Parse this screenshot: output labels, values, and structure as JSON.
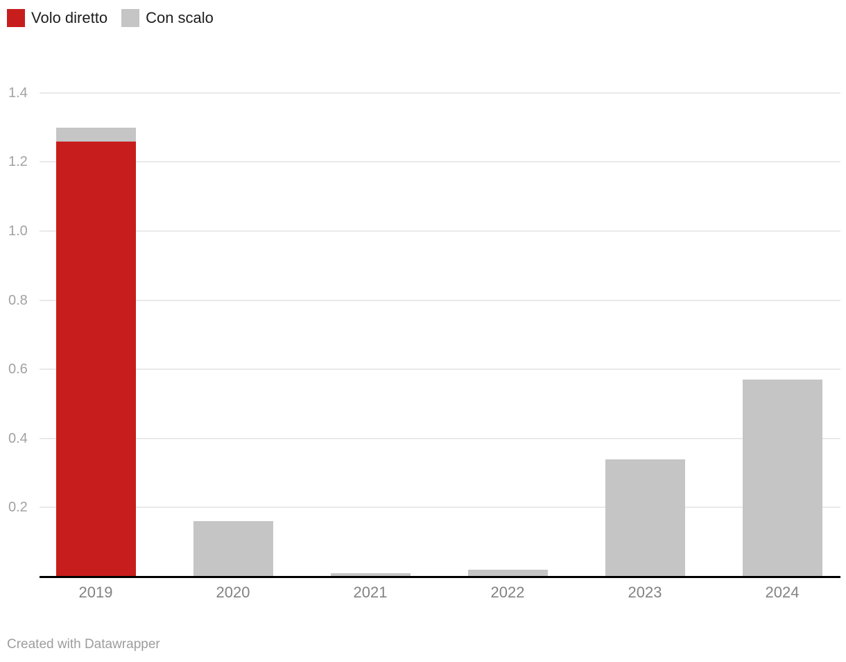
{
  "footer": {
    "credit": "Created with Datawrapper"
  },
  "chart_data": {
    "type": "bar",
    "stacked": true,
    "title": "",
    "xlabel": "",
    "ylabel": "",
    "categories": [
      "2019",
      "2020",
      "2021",
      "2022",
      "2023",
      "2024"
    ],
    "series": [
      {
        "name": "Volo diretto",
        "color": "#c71e1d",
        "values": [
          1.26,
          0,
          0,
          0,
          0,
          0
        ]
      },
      {
        "name": "Con scalo",
        "color": "#c5c5c5",
        "values": [
          0.04,
          0.16,
          0.01,
          0.02,
          0.34,
          0.57
        ]
      }
    ],
    "totals": [
      1.3,
      0.16,
      0.01,
      0.02,
      0.34,
      0.57
    ],
    "ylim": [
      0,
      1.4
    ],
    "yticks": [
      {
        "value": 0.2,
        "label": "0.2"
      },
      {
        "value": 0.4,
        "label": "0.4"
      },
      {
        "value": 0.6,
        "label": "0.6"
      },
      {
        "value": 0.8,
        "label": "0.8"
      },
      {
        "value": 1.0,
        "label": "1.0"
      },
      {
        "value": 1.2,
        "label": "1.2"
      },
      {
        "value": 1.4,
        "label": "1.4"
      }
    ],
    "grid": true,
    "legend_position": "top-left",
    "colors": {
      "axis_line": "#000000",
      "gridline": "#e9e9e9",
      "ytick_label": "#a2a2a2",
      "xtick_label": "#828282",
      "legend_text": "#1d1d1d",
      "background": "#ffffff"
    }
  }
}
